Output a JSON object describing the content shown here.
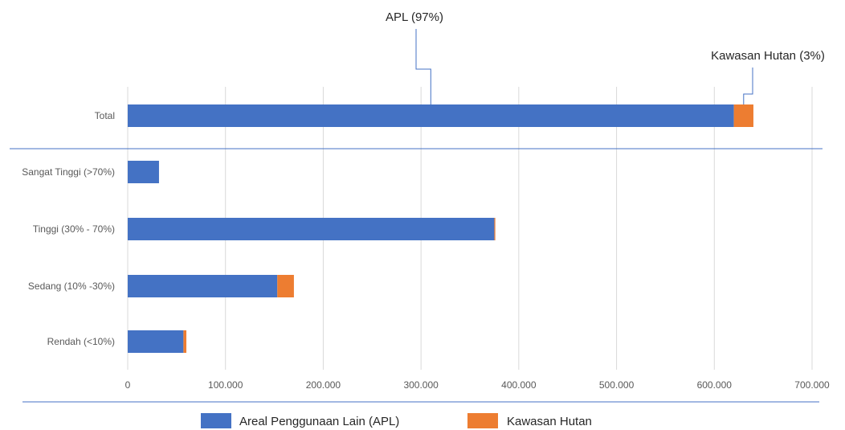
{
  "chart_data": {
    "type": "bar",
    "orientation": "horizontal",
    "stacked": true,
    "categories": [
      "Total",
      "Sangat Tinggi (>70%)",
      "Tinggi (30% - 70%)",
      "Sedang (10% -30%)",
      "Rendah (<10%)"
    ],
    "series": [
      {
        "name": "Areal Penggunaan Lain (APL)",
        "color": "#4472c4",
        "values": [
          620000,
          32000,
          375000,
          153000,
          57000
        ]
      },
      {
        "name": "Kawasan Hutan",
        "color": "#ed7d31",
        "values": [
          20000,
          0,
          1000,
          17000,
          3000
        ]
      }
    ],
    "xlim": [
      0,
      700000
    ],
    "xticks": [
      0,
      100000,
      200000,
      300000,
      400000,
      500000,
      600000,
      700000
    ],
    "xtick_labels": [
      "0",
      "100.000",
      "200.000",
      "300.000",
      "400.000",
      "500.000",
      "600.000",
      "700.000"
    ],
    "annotations": [
      {
        "text": "APL (97%)",
        "category": "Total",
        "series": 0
      },
      {
        "text": "Kawasan Hutan (3%)",
        "category": "Total",
        "series": 1
      }
    ],
    "grid": true,
    "legend_position": "bottom"
  }
}
